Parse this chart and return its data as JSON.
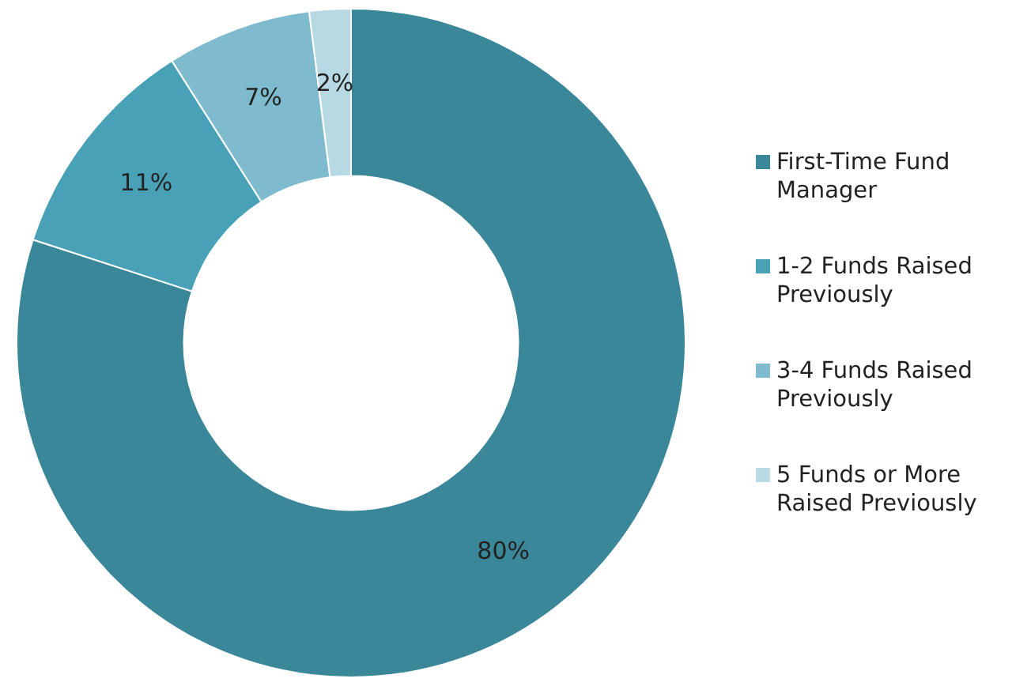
{
  "chart_data": {
    "type": "donut",
    "categories": [
      "First-Time Fund Manager",
      "1-2 Funds Raised Previously",
      "3-4 Funds Raised Previously",
      "5 Funds or More Raised Previously"
    ],
    "values": [
      80,
      11,
      7,
      2
    ],
    "colors": [
      "#3a8799",
      "#48a1b7",
      "#7ebbcf",
      "#b6d9e4"
    ],
    "value_labels": [
      "80%",
      "11%",
      "7%",
      "2%"
    ],
    "legend": "right"
  }
}
